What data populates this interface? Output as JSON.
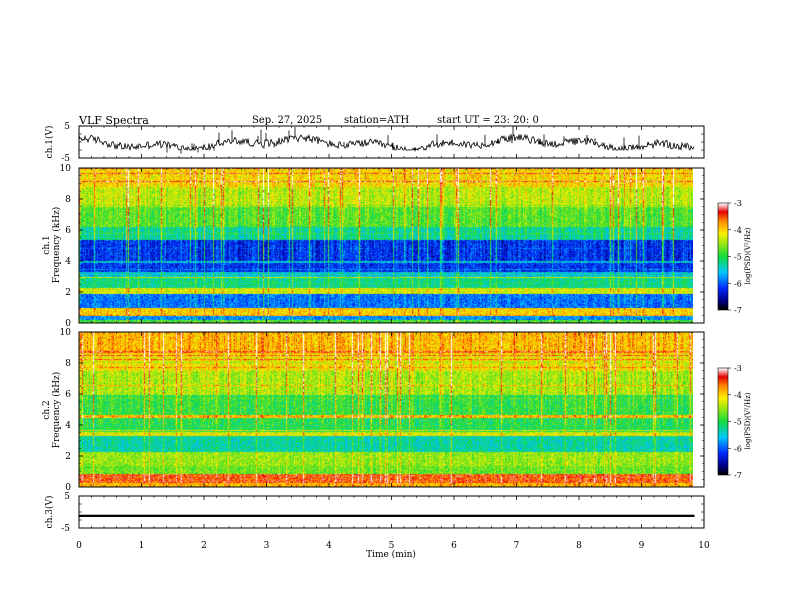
{
  "header": {
    "title": "VLF  Spectra",
    "date": "Sep. 27, 2025",
    "station": "station=ATH",
    "start_ut": "start  UT  =    23: 20: 0"
  },
  "chart_data": [
    {
      "name": "ch1-voltage",
      "type": "line",
      "ylabel": "ch.1(V)",
      "ylim": [
        -5,
        5
      ],
      "yticks": [
        5,
        -5
      ],
      "xlim": [
        0,
        10
      ],
      "x_end": 9.85,
      "series": [
        {
          "mean": -0.5,
          "envelope": [
            -2.5,
            2.5
          ]
        }
      ]
    },
    {
      "name": "ch1-spectrogram",
      "type": "heatmap",
      "ylabel_line1": "ch.1",
      "ylabel_line2": "Frequency  (kHz)",
      "ylim": [
        0,
        10
      ],
      "yticks": [
        0,
        2,
        4,
        6,
        8,
        10
      ],
      "xlim": [
        0,
        10
      ],
      "colorbar": {
        "label": "log(PSD)(V²/Hz)",
        "range": [
          -7,
          -3
        ],
        "ticks": [
          -3,
          -4,
          -5,
          -6,
          -7
        ]
      }
    },
    {
      "name": "ch2-spectrogram",
      "type": "heatmap",
      "ylabel_line1": "ch.2",
      "ylabel_line2": "Frequency  (kHz)",
      "ylim": [
        0,
        10
      ],
      "yticks": [
        0,
        2,
        4,
        6,
        8,
        10
      ],
      "xlim": [
        0,
        10
      ],
      "colorbar": {
        "label": "log(PSD)(V²/Hz)",
        "range": [
          -7,
          -3
        ],
        "ticks": [
          -3,
          -4,
          -5,
          -6,
          -7
        ]
      }
    },
    {
      "name": "ch3-voltage",
      "type": "line",
      "ylabel": "ch.3(V)",
      "ylim": [
        -5,
        5
      ],
      "yticks": [
        5,
        -5
      ],
      "xlim": [
        0,
        10
      ],
      "x_end": 9.85,
      "series": [
        {
          "mean": -1.2,
          "envelope": [
            -1.5,
            -0.9
          ]
        }
      ]
    }
  ],
  "xaxis": {
    "label": "Time  (min)",
    "range": [
      0,
      10
    ],
    "ticks": [
      0,
      1,
      2,
      3,
      4,
      5,
      6,
      7,
      8,
      9,
      10
    ]
  }
}
